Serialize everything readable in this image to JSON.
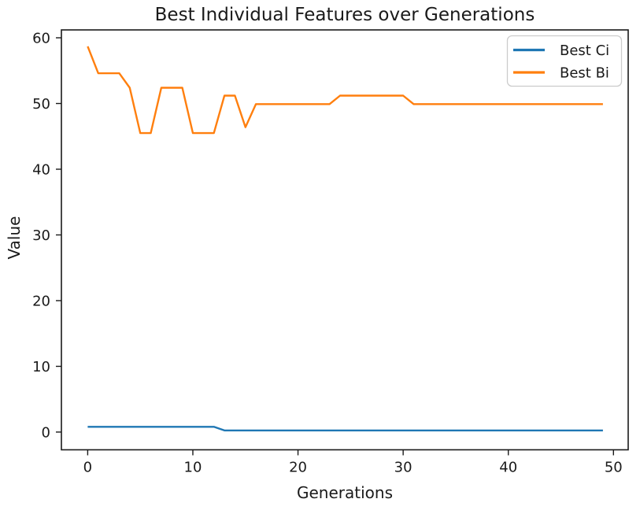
{
  "chart_data": {
    "type": "line",
    "title": "Best Individual Features over Generations",
    "xlabel": "Generations",
    "ylabel": "Value",
    "x_ticks": [
      0,
      10,
      20,
      30,
      40,
      50
    ],
    "y_ticks": [
      0,
      10,
      20,
      30,
      40,
      50,
      60
    ],
    "xlim": [
      -2.5,
      51.4
    ],
    "ylim": [
      -2.7,
      61.2
    ],
    "grid": false,
    "legend_position": "upper right",
    "x": [
      0,
      1,
      2,
      3,
      4,
      5,
      6,
      7,
      8,
      9,
      10,
      11,
      12,
      13,
      14,
      15,
      16,
      17,
      18,
      19,
      20,
      21,
      22,
      23,
      24,
      25,
      26,
      27,
      28,
      29,
      30,
      31,
      32,
      33,
      34,
      35,
      36,
      37,
      38,
      39,
      40,
      41,
      42,
      43,
      44,
      45,
      46,
      47,
      48,
      49
    ],
    "series": [
      {
        "name": "Best Ci",
        "color": "#1f77b4",
        "values": [
          0.8,
          0.8,
          0.8,
          0.8,
          0.8,
          0.8,
          0.8,
          0.8,
          0.8,
          0.8,
          0.8,
          0.8,
          0.8,
          0.25,
          0.25,
          0.25,
          0.25,
          0.25,
          0.25,
          0.25,
          0.25,
          0.25,
          0.25,
          0.25,
          0.25,
          0.25,
          0.25,
          0.25,
          0.25,
          0.25,
          0.25,
          0.25,
          0.25,
          0.25,
          0.25,
          0.25,
          0.25,
          0.25,
          0.25,
          0.25,
          0.25,
          0.25,
          0.25,
          0.25,
          0.25,
          0.25,
          0.25,
          0.25,
          0.25,
          0.25
        ]
      },
      {
        "name": "Best Bi",
        "color": "#ff7f0e",
        "values": [
          58.7,
          54.6,
          54.6,
          54.6,
          52.4,
          45.5,
          45.5,
          52.4,
          52.4,
          52.4,
          45.5,
          45.5,
          45.5,
          51.2,
          51.2,
          46.4,
          49.9,
          49.9,
          49.9,
          49.9,
          49.9,
          49.9,
          49.9,
          49.9,
          51.2,
          51.2,
          51.2,
          51.2,
          51.2,
          51.2,
          51.2,
          49.9,
          49.9,
          49.9,
          49.9,
          49.9,
          49.9,
          49.9,
          49.9,
          49.9,
          49.9,
          49.9,
          49.9,
          49.9,
          49.9,
          49.9,
          49.9,
          49.9,
          49.9,
          49.9
        ]
      }
    ]
  }
}
